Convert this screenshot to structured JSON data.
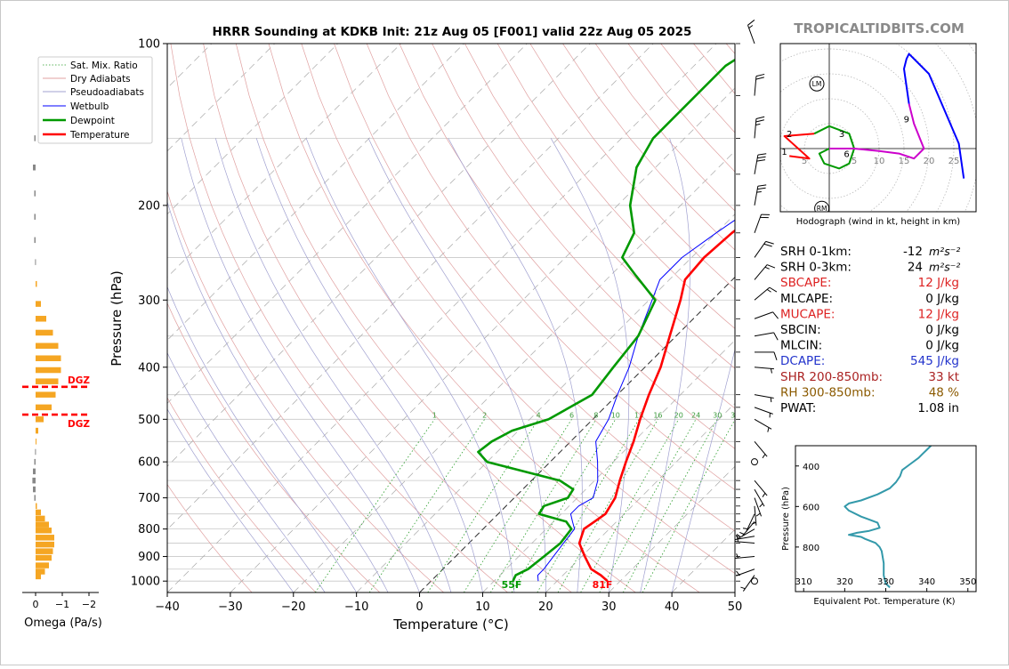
{
  "title": "HRRR Sounding at KDKB Init: 21z Aug 05 [F001] valid 22z Aug 05 2025",
  "watermark": "TROPICALTIDBITS.COM",
  "chart_data": [
    {
      "type": "line",
      "name": "skew-t",
      "xlabel": "Temperature (°C)",
      "ylabel": "Pressure (hPa)",
      "xlim": [
        -40,
        50
      ],
      "ylim": [
        1050,
        100
      ],
      "y_scale": "log",
      "grid": true,
      "x_ticks": [
        "−40",
        "−30",
        "−20",
        "−10",
        "0",
        "10",
        "20",
        "30",
        "40",
        "50"
      ],
      "y_ticks": [
        "100",
        "200",
        "300",
        "400",
        "500",
        "600",
        "700",
        "800",
        "900",
        "1000"
      ],
      "legend_position": "upper-left",
      "legend": [
        "Sat. Mix. Ratio",
        "Dry Adiabats",
        "Pseudoadiabats",
        "Wetbulb",
        "Dewpoint",
        "Temperature"
      ],
      "mixing_ratio_labels": [
        "1",
        "2",
        "4",
        "6",
        "8",
        "10",
        "13",
        "16",
        "20",
        "24",
        "30",
        "36"
      ],
      "surface_dewpoint_label": "55F",
      "surface_temperature_label": "81F",
      "colors": {
        "temperature": "#ff0000",
        "dewpoint": "#009900",
        "wetbulb": "#0000ff",
        "dry": "#e0a0a0",
        "moist": "#a0a0d0",
        "mixing": "#2a9d2a",
        "isotherm": "#a8a8a8"
      },
      "series": [
        {
          "name": "Temperature",
          "points": [
            [
              28,
              1000
            ],
            [
              26,
              975
            ],
            [
              23.5,
              950
            ],
            [
              20.5,
              900
            ],
            [
              17.5,
              850
            ],
            [
              16,
              800
            ],
            [
              16.5,
              775
            ],
            [
              17,
              750
            ],
            [
              16,
              700
            ],
            [
              14,
              650
            ],
            [
              12,
              600
            ],
            [
              10,
              550
            ],
            [
              7.5,
              500
            ],
            [
              5,
              450
            ],
            [
              2.5,
              400
            ],
            [
              -1,
              350
            ],
            [
              -5,
              300
            ],
            [
              -7.5,
              275
            ],
            [
              -8,
              250
            ],
            [
              -7.5,
              225
            ],
            [
              -6,
              200
            ],
            [
              -4.5,
              180
            ],
            [
              -3,
              160
            ],
            [
              -1.5,
              140
            ],
            [
              -1.5,
              130
            ],
            [
              -2.5,
              120
            ],
            [
              -2.5,
              110
            ],
            [
              -2,
              105
            ],
            [
              -1.5,
              100
            ]
          ]
        },
        {
          "name": "Dewpoint",
          "points": [
            [
              13,
              1000
            ],
            [
              12.5,
              975
            ],
            [
              13.5,
              950
            ],
            [
              14,
              900
            ],
            [
              14.5,
              850
            ],
            [
              14,
              800
            ],
            [
              12,
              775
            ],
            [
              6.5,
              750
            ],
            [
              6,
              725
            ],
            [
              8.5,
              700
            ],
            [
              8,
              675
            ],
            [
              4.5,
              650
            ],
            [
              -10,
              600
            ],
            [
              -13,
              575
            ],
            [
              -12.5,
              550
            ],
            [
              -11,
              525
            ],
            [
              -7,
              500
            ],
            [
              -4,
              450
            ],
            [
              -5,
              400
            ],
            [
              -6,
              350
            ],
            [
              -9,
              300
            ],
            [
              -16,
              270
            ],
            [
              -21,
              250
            ],
            [
              -23,
              225
            ],
            [
              -28,
              200
            ],
            [
              -33,
              170
            ],
            [
              -35,
              150
            ],
            [
              -35,
              130
            ],
            [
              -35,
              110
            ],
            [
              -33,
              100
            ]
          ]
        },
        {
          "name": "Wetbulb",
          "points": [
            [
              17,
              1000
            ],
            [
              16,
              975
            ],
            [
              16,
              950
            ],
            [
              15.5,
              900
            ],
            [
              15,
              850
            ],
            [
              14.5,
              800
            ],
            [
              13,
              775
            ],
            [
              11.5,
              750
            ],
            [
              11.5,
              725
            ],
            [
              12.5,
              700
            ],
            [
              10.5,
              650
            ],
            [
              7.5,
              600
            ],
            [
              4,
              550
            ],
            [
              2.5,
              500
            ],
            [
              0,
              450
            ],
            [
              -2.5,
              400
            ],
            [
              -6,
              350
            ],
            [
              -9.5,
              300
            ],
            [
              -11.5,
              275
            ],
            [
              -11.5,
              250
            ],
            [
              -10,
              225
            ],
            [
              -8,
              200
            ],
            [
              -5,
              170
            ],
            [
              -3,
              150
            ],
            [
              -2,
              130
            ],
            [
              -2.5,
              120
            ],
            [
              -2.5,
              110
            ],
            [
              -2,
              105
            ],
            [
              -1.5,
              100
            ]
          ]
        }
      ]
    },
    {
      "type": "bar",
      "name": "omega",
      "xlabel": "Omega (Pa/s)",
      "x_ticks": [
        "0",
        "−1",
        "−2"
      ],
      "xlim": [
        0.2,
        -2.4
      ],
      "dgz_label": "DGZ",
      "dgz_levels": [
        435,
        490
      ],
      "colors": {
        "rising": "#f5a623",
        "sinking": "#888888",
        "dgz": "#ff0000"
      },
      "values": [
        [
          980,
          -0.2
        ],
        [
          960,
          -0.35
        ],
        [
          935,
          -0.5
        ],
        [
          905,
          -0.6
        ],
        [
          880,
          -0.65
        ],
        [
          855,
          -0.7
        ],
        [
          830,
          -0.7
        ],
        [
          805,
          -0.6
        ],
        [
          785,
          -0.5
        ],
        [
          765,
          -0.35
        ],
        [
          745,
          -0.2
        ],
        [
          725,
          -0.05
        ],
        [
          700,
          0.05
        ],
        [
          675,
          0.1
        ],
        [
          650,
          0.12
        ],
        [
          625,
          0.1
        ],
        [
          600,
          0.05
        ],
        [
          575,
          0.02
        ],
        [
          550,
          -0.02
        ],
        [
          525,
          -0.1
        ],
        [
          500,
          -0.3
        ],
        [
          475,
          -0.6
        ],
        [
          450,
          -0.75
        ],
        [
          425,
          -0.85
        ],
        [
          405,
          -0.95
        ],
        [
          385,
          -0.95
        ],
        [
          365,
          -0.85
        ],
        [
          345,
          -0.65
        ],
        [
          325,
          -0.4
        ],
        [
          305,
          -0.2
        ],
        [
          280,
          -0.05
        ],
        [
          255,
          0.02
        ],
        [
          232,
          0.05
        ],
        [
          210,
          0.05
        ],
        [
          190,
          0.05
        ],
        [
          170,
          0.1
        ],
        [
          150,
          0.05
        ]
      ]
    },
    {
      "type": "line",
      "name": "hodograph",
      "caption": "Hodograph (wind in kt, height in km)",
      "ring_labels": [
        "5",
        "5",
        "10",
        "15",
        "20",
        "25"
      ],
      "markers": [
        "LM",
        "RM"
      ],
      "height_labels": [
        "1",
        "2",
        "3",
        "6",
        "9"
      ],
      "colors": {
        "0-2km": "#ff0000",
        "2-5km": "#009900",
        "5-9km": "#cc00cc",
        "9+km": "#0000ff"
      },
      "series": [
        {
          "name": "0-2km",
          "points": [
            [
              -8,
              -1.5
            ],
            [
              -4,
              -2
            ],
            [
              -9,
              2.5
            ],
            [
              -3,
              3
            ]
          ]
        },
        {
          "name": "2-5km",
          "points": [
            [
              -3,
              3
            ],
            [
              0,
              4.5
            ],
            [
              4,
              3
            ],
            [
              5,
              0
            ],
            [
              4,
              -3
            ],
            [
              2,
              -4
            ],
            [
              -1,
              -3
            ],
            [
              -2,
              -1
            ],
            [
              0,
              0
            ]
          ]
        },
        {
          "name": "5-9km",
          "points": [
            [
              0,
              0
            ],
            [
              5,
              0
            ],
            [
              10,
              -0.5
            ],
            [
              14,
              -1
            ],
            [
              17,
              -2
            ],
            [
              19,
              0
            ],
            [
              17,
              5
            ],
            [
              16,
              9
            ]
          ]
        },
        {
          "name": "9+km",
          "points": [
            [
              16,
              9
            ],
            [
              15,
              16
            ],
            [
              15.5,
              18
            ],
            [
              16,
              19
            ],
            [
              20,
              15
            ],
            [
              26,
              1
            ],
            [
              27,
              -6
            ]
          ]
        }
      ]
    },
    {
      "type": "line",
      "name": "theta-e",
      "xlabel": "Equivalent Pot. Temperature (K)",
      "ylabel": "Pressure (hPa)",
      "x_ticks": [
        "310",
        "320",
        "330",
        "340",
        "350"
      ],
      "y_ticks": [
        "400",
        "600",
        "800"
      ],
      "xlim": [
        308,
        352
      ],
      "ylim": [
        1020,
        300
      ],
      "colors": {
        "line": "#3399aa"
      },
      "points": [
        [
          331,
          1000
        ],
        [
          330,
          980
        ],
        [
          329.5,
          940
        ],
        [
          329.5,
          880
        ],
        [
          329,
          820
        ],
        [
          328.5,
          800
        ],
        [
          327.5,
          780
        ],
        [
          325,
          760
        ],
        [
          324,
          750
        ],
        [
          321,
          740
        ],
        [
          323,
          730
        ],
        [
          326,
          720
        ],
        [
          328.5,
          705
        ],
        [
          328,
          680
        ],
        [
          326,
          665
        ],
        [
          324,
          650
        ],
        [
          321,
          620
        ],
        [
          320,
          600
        ],
        [
          321,
          585
        ],
        [
          324,
          570
        ],
        [
          328,
          540
        ],
        [
          331,
          510
        ],
        [
          332.5,
          480
        ],
        [
          333.5,
          450
        ],
        [
          334,
          420
        ],
        [
          336,
          390
        ],
        [
          338,
          360
        ],
        [
          339,
          340
        ],
        [
          340,
          320
        ],
        [
          341,
          300
        ]
      ]
    }
  ],
  "params": [
    {
      "label": "SRH 0-1km:",
      "value": "-12",
      "unit": "m²s⁻²",
      "color": "#000000"
    },
    {
      "label": "SRH 0-3km:",
      "value": "24",
      "unit": "m²s⁻²",
      "color": "#000000"
    },
    {
      "label": "SBCAPE:",
      "value": "12 J/kg",
      "unit": "",
      "color": "#dd2222"
    },
    {
      "label": "MLCAPE:",
      "value": "0 J/kg",
      "unit": "",
      "color": "#000000"
    },
    {
      "label": "MUCAPE:",
      "value": "12 J/kg",
      "unit": "",
      "color": "#dd2222"
    },
    {
      "label": "SBCIN:",
      "value": "0 J/kg",
      "unit": "",
      "color": "#000000"
    },
    {
      "label": "MLCIN:",
      "value": "0 J/kg",
      "unit": "",
      "color": "#000000"
    },
    {
      "label": "DCAPE:",
      "value": "545 J/kg",
      "unit": "",
      "color": "#2233cc"
    },
    {
      "label": "SHR 200-850mb:",
      "value": "33 kt",
      "unit": "",
      "color": "#aa2222"
    },
    {
      "label": "RH 300-850mb:",
      "value": "48 %",
      "unit": "",
      "color": "#8b5a00"
    },
    {
      "label": "PWAT:",
      "value": "1.08 in",
      "unit": "",
      "color": "#000000"
    }
  ],
  "wind_barbs": [
    {
      "p": 1000,
      "calm": true
    },
    {
      "p": 975,
      "dir": 215,
      "spd": 5
    },
    {
      "p": 950,
      "dir": 250,
      "spd": 5
    },
    {
      "p": 900,
      "dir": 265,
      "spd": 5
    },
    {
      "p": 850,
      "dir": 275,
      "spd": 5
    },
    {
      "p": 825,
      "dir": 260,
      "spd": 5
    },
    {
      "p": 800,
      "dir": 240,
      "spd": 5
    },
    {
      "p": 775,
      "dir": 220,
      "spd": 5
    },
    {
      "p": 750,
      "dir": 205,
      "spd": 5
    },
    {
      "p": 725,
      "dir": 175,
      "spd": 5
    },
    {
      "p": 700,
      "dir": 160,
      "spd": 5
    },
    {
      "p": 675,
      "dir": 150,
      "spd": 5
    },
    {
      "p": 650,
      "dir": 140,
      "spd": 5
    },
    {
      "p": 600,
      "calm": true
    },
    {
      "p": 550,
      "dir": 140,
      "spd": 5
    },
    {
      "p": 500,
      "dir": 120,
      "spd": 5
    },
    {
      "p": 475,
      "dir": 110,
      "spd": 5
    },
    {
      "p": 450,
      "dir": 100,
      "spd": 5
    },
    {
      "p": 400,
      "dir": 95,
      "spd": 5
    },
    {
      "p": 375,
      "dir": 90,
      "spd": 10
    },
    {
      "p": 350,
      "dir": 80,
      "spd": 10
    },
    {
      "p": 325,
      "dir": 70,
      "spd": 10
    },
    {
      "p": 300,
      "dir": 50,
      "spd": 15
    },
    {
      "p": 275,
      "dir": 40,
      "spd": 15
    },
    {
      "p": 250,
      "dir": 35,
      "spd": 20
    },
    {
      "p": 225,
      "dir": 20,
      "spd": 20
    },
    {
      "p": 200,
      "dir": 10,
      "spd": 25
    },
    {
      "p": 175,
      "dir": 10,
      "spd": 30
    },
    {
      "p": 150,
      "dir": 5,
      "spd": 25
    },
    {
      "p": 125,
      "dir": 5,
      "spd": 20
    },
    {
      "p": 100,
      "dir": 340,
      "spd": 15
    }
  ]
}
